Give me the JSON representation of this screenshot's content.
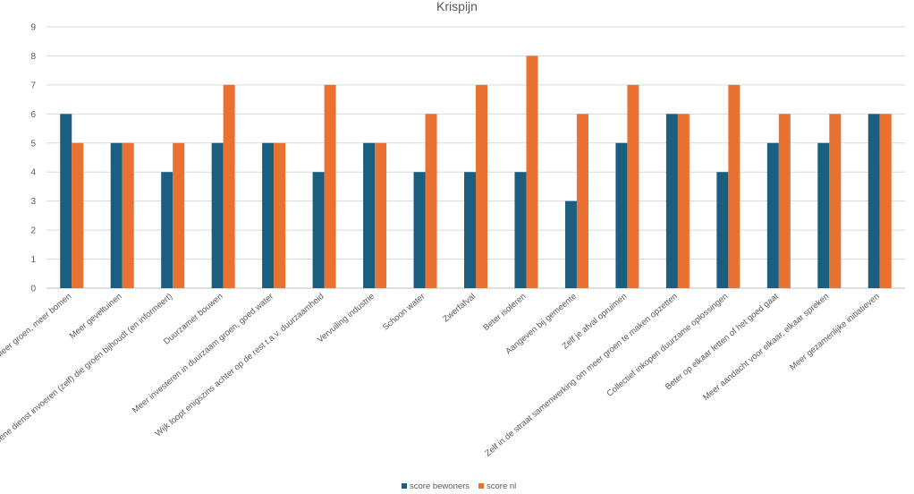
{
  "chart_data": {
    "type": "bar",
    "title": "Krispijn",
    "xlabel": "",
    "ylabel": "",
    "ylim": [
      0,
      9
    ],
    "yticks": [
      0,
      1,
      2,
      3,
      4,
      5,
      6,
      7,
      8,
      9
    ],
    "grid": true,
    "legend_position": "bottom",
    "categories": [
      "Meer groen, meer bomen",
      "Meer geveltuinen",
      "Groene dienst invoeren (zelf) die groen bijhoudt (en informeert)",
      "Duurzamer bouwen",
      "Meer investeren in duurzaam groen, goed water",
      "Wijk loopt enigszins achter op de rest t.a.v. duurzaamheid",
      "Vervuiling industrie",
      "Schoon water",
      "Zwerfafval",
      "Beter isoleren",
      "Aangeven bij gemeente",
      "Zelf je afval opruimen",
      "Zelf in de straat samenwerking om meer groen te maken opzetten",
      "Collectief inkopen duurzame oplossingen",
      "Beter op elkaar letten of het goed gaat",
      "Meer aandacht voor elkaar, elkaar spreken",
      "Meer gezamenlijke initiatieven"
    ],
    "series": [
      {
        "name": "score bewoners",
        "color": "#1b5e80",
        "values": [
          6,
          5,
          4,
          5,
          5,
          4,
          5,
          4,
          4,
          4,
          3,
          5,
          6,
          4,
          5,
          5,
          6
        ]
      },
      {
        "name": "score nl",
        "color": "#e97132",
        "values": [
          5,
          5,
          5,
          7,
          5,
          7,
          5,
          6,
          7,
          8,
          6,
          7,
          6,
          7,
          6,
          6,
          6
        ]
      }
    ]
  }
}
